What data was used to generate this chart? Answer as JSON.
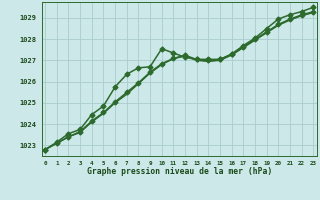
{
  "s1_y": [
    1022.8,
    1023.15,
    1023.55,
    1023.75,
    1024.45,
    1024.85,
    1025.75,
    1026.35,
    1026.65,
    1026.7,
    1027.55,
    1027.35,
    1027.15,
    1027.05,
    1027.05,
    1027.05,
    1027.3,
    1027.7,
    1028.05,
    1028.5,
    1028.95,
    1029.15,
    1029.3,
    1029.5
  ],
  "s2_y": [
    1022.8,
    1023.1,
    1023.4,
    1023.65,
    1024.15,
    1024.55,
    1025.05,
    1025.5,
    1025.95,
    1026.45,
    1026.85,
    1027.1,
    1027.25,
    1027.05,
    1027.0,
    1027.05,
    1027.3,
    1027.65,
    1028.0,
    1028.35,
    1028.7,
    1028.95,
    1029.15,
    1029.3
  ],
  "s3_y": [
    1022.8,
    1023.1,
    1023.4,
    1023.65,
    1024.12,
    1024.52,
    1025.02,
    1025.47,
    1025.92,
    1026.42,
    1026.82,
    1027.07,
    1027.22,
    1027.02,
    1026.97,
    1027.02,
    1027.27,
    1027.62,
    1027.97,
    1028.32,
    1028.67,
    1028.92,
    1029.12,
    1029.27
  ],
  "s4_y": [
    1022.8,
    1023.1,
    1023.4,
    1023.6,
    1024.1,
    1024.5,
    1025.0,
    1025.4,
    1025.9,
    1026.4,
    1026.8,
    1027.1,
    1027.2,
    1027.0,
    1026.95,
    1027.0,
    1027.25,
    1027.6,
    1027.95,
    1028.3,
    1028.65,
    1028.9,
    1029.1,
    1029.25
  ],
  "x": [
    0,
    1,
    2,
    3,
    4,
    5,
    6,
    7,
    8,
    9,
    10,
    11,
    12,
    13,
    14,
    15,
    16,
    17,
    18,
    19,
    20,
    21,
    22,
    23
  ],
  "xlim": [
    -0.3,
    23.3
  ],
  "ylim": [
    1022.5,
    1029.75
  ],
  "yticks": [
    1023,
    1024,
    1025,
    1026,
    1027,
    1028,
    1029
  ],
  "xticks": [
    0,
    1,
    2,
    3,
    4,
    5,
    6,
    7,
    8,
    9,
    10,
    11,
    12,
    13,
    14,
    15,
    16,
    17,
    18,
    19,
    20,
    21,
    22,
    23
  ],
  "xlabel": "Graphe pression niveau de la mer (hPa)",
  "bg_color": "#cce8e8",
  "grid_color": "#aacccc",
  "line_color": "#2d6a2d",
  "label_color": "#1a4a1a"
}
